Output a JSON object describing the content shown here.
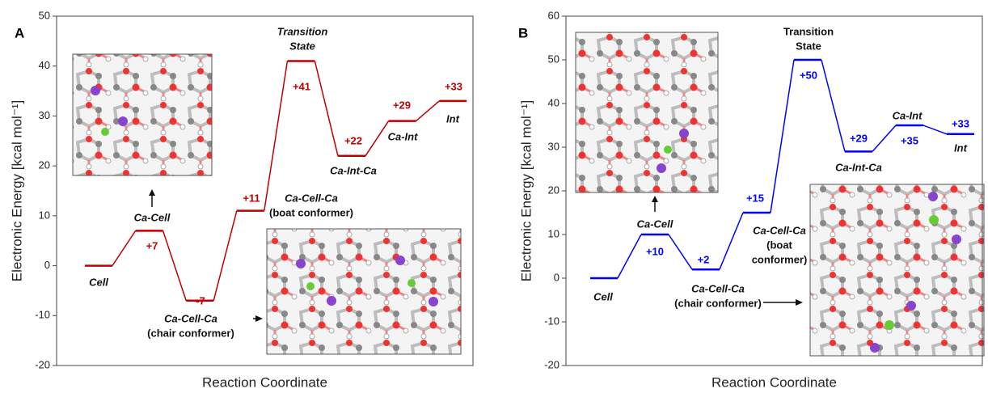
{
  "chart_data": [
    {
      "type": "energy",
      "panel": "A",
      "ylabel": "Electronic Energy [kcal mol⁻¹]",
      "xlabel": "Reaction Coordinate",
      "ylim": [
        -20,
        50
      ],
      "yticks": [
        -20,
        -10,
        0,
        10,
        20,
        30,
        40,
        50
      ],
      "color": "#c00000",
      "categories": [
        [
          "Cell"
        ],
        [
          "Ca-Cell"
        ],
        [
          "Ca-Cell-Ca",
          "(chair conformer)"
        ],
        [
          "Ca-Cell-Ca",
          "(boat conformer)"
        ],
        [
          "Transition",
          "State"
        ],
        [
          "Ca-Int-Ca"
        ],
        [
          "Ca-Int"
        ],
        [
          "Int"
        ]
      ],
      "values": [
        0,
        7,
        -7,
        11,
        41,
        22,
        29,
        33
      ],
      "value_labels": [
        null,
        "+7",
        "-7",
        "+11",
        "+41",
        "+22",
        "+29",
        "+33"
      ]
    },
    {
      "type": "energy",
      "panel": "B",
      "ylabel": "Electronic Energy [kcal mol⁻¹]",
      "xlabel": "Reaction Coordinate",
      "ylim": [
        -20,
        60
      ],
      "yticks": [
        -20,
        -10,
        0,
        10,
        20,
        30,
        40,
        50,
        60
      ],
      "color": "#0000ff",
      "categories": [
        [
          "Cell"
        ],
        [
          "Ca-Cell"
        ],
        [
          "Ca-Cell-Ca",
          "(chair conformer)"
        ],
        [
          "Ca-Cell-Ca",
          "(boat",
          "conformer)"
        ],
        [
          "Transition",
          "State"
        ],
        [
          "Ca-Int-Ca"
        ],
        [
          "Ca-Int"
        ],
        [
          "Int"
        ]
      ],
      "values": [
        0,
        10,
        2,
        15,
        50,
        29,
        35,
        33
      ],
      "value_labels": [
        null,
        "+10",
        "+2",
        "+15",
        "+50",
        "+29",
        "+35",
        "+33"
      ]
    }
  ]
}
